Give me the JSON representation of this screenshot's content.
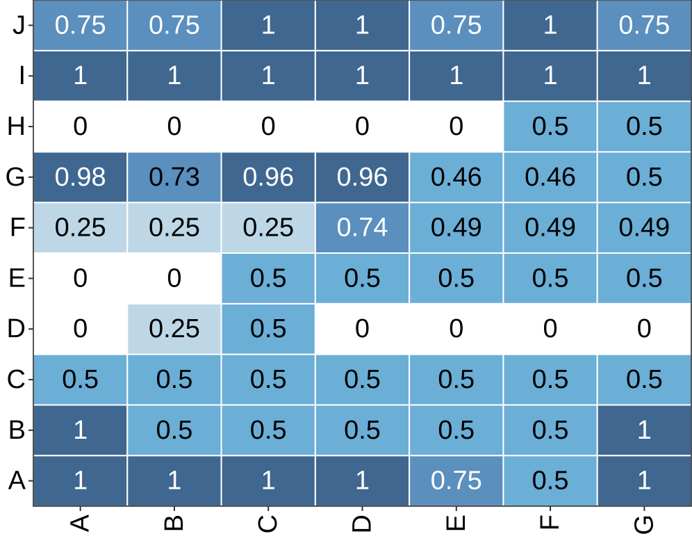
{
  "chart_data": {
    "type": "heatmap",
    "x_categories": [
      "A",
      "B",
      "C",
      "D",
      "E",
      "F",
      "G"
    ],
    "y_categories": [
      "A",
      "B",
      "C",
      "D",
      "E",
      "F",
      "G",
      "H",
      "I",
      "J"
    ],
    "values": [
      [
        1,
        1,
        1,
        1,
        0.75,
        0.5,
        1
      ],
      [
        1,
        0.5,
        0.5,
        0.5,
        0.5,
        0.5,
        1
      ],
      [
        0.5,
        0.5,
        0.5,
        0.5,
        0.5,
        0.5,
        0.5
      ],
      [
        0,
        0.25,
        0.5,
        0,
        0,
        0,
        0
      ],
      [
        0,
        0,
        0.5,
        0.5,
        0.5,
        0.5,
        0.5
      ],
      [
        0.25,
        0.25,
        0.25,
        0.74,
        0.49,
        0.49,
        0.49
      ],
      [
        0.98,
        0.73,
        0.96,
        0.96,
        0.46,
        0.46,
        0.5
      ],
      [
        0,
        0,
        0,
        0,
        0,
        0.5,
        0.5
      ],
      [
        1,
        1,
        1,
        1,
        1,
        1,
        1
      ],
      [
        0.75,
        0.75,
        1,
        1,
        0.75,
        1,
        0.75
      ]
    ],
    "labels": [
      [
        "1",
        "1",
        "1",
        "1",
        "0.75",
        "0.5",
        "1"
      ],
      [
        "1",
        "0.5",
        "0.5",
        "0.5",
        "0.5",
        "0.5",
        "1"
      ],
      [
        "0.5",
        "0.5",
        "0.5",
        "0.5",
        "0.5",
        "0.5",
        "0.5"
      ],
      [
        "0",
        "0.25",
        "0.5",
        "0",
        "0",
        "0",
        "0"
      ],
      [
        "0",
        "0",
        "0.5",
        "0.5",
        "0.5",
        "0.5",
        "0.5"
      ],
      [
        "0.25",
        "0.25",
        "0.25",
        "0.74",
        "0.49",
        "0.49",
        "0.49"
      ],
      [
        "0.98",
        "0.73",
        "0.96",
        "0.96",
        "0.46",
        "0.46",
        "0.5"
      ],
      [
        "0",
        "0",
        "0",
        "0",
        "0",
        "0.5",
        "0.5"
      ],
      [
        "1",
        "1",
        "1",
        "1",
        "1",
        "1",
        "1"
      ],
      [
        "0.75",
        "0.75",
        "1",
        "1",
        "0.75",
        "1",
        "0.75"
      ]
    ],
    "value_range": [
      0,
      1
    ],
    "colors": {
      "zero": "#ffffff",
      "low": "#bdd7e7",
      "mid": "#6baed6",
      "upper": "#5a8fbe",
      "high": "#3f6790",
      "text_dark": "#000000",
      "text_light": "#ffffff",
      "grid_line": "#ffffff"
    },
    "grid": true,
    "legend": "none"
  }
}
